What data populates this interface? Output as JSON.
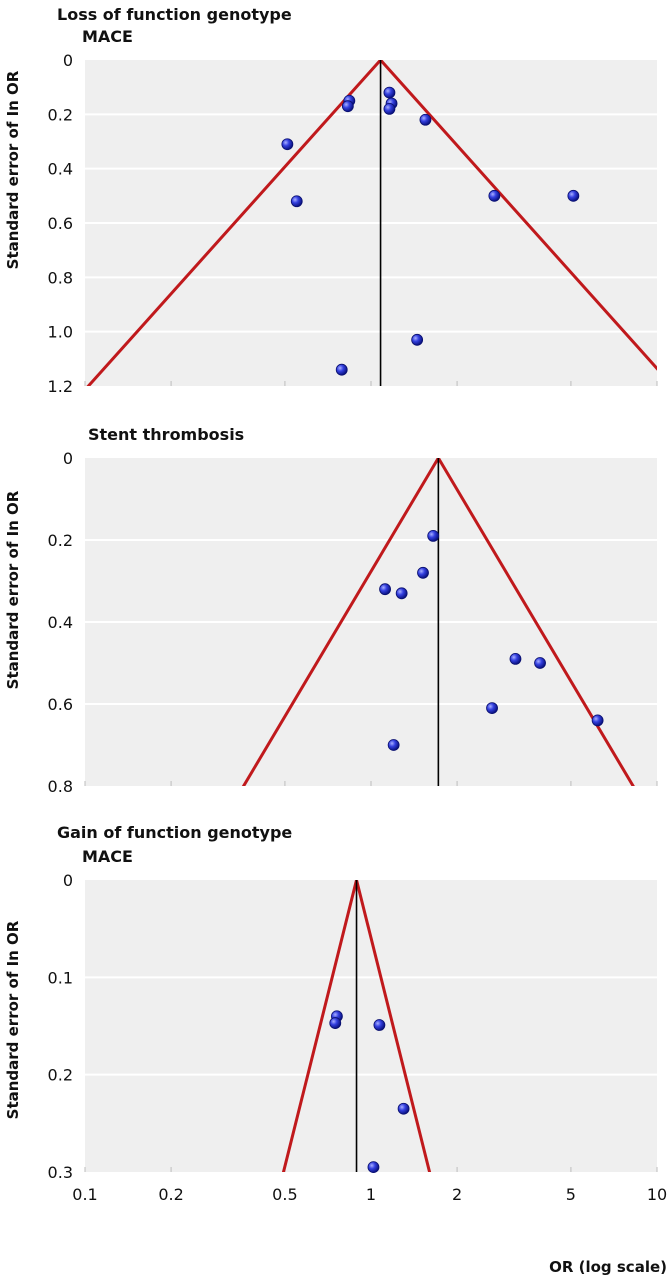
{
  "chart_data": [
    {
      "type": "scatter",
      "title": "Loss of function genotype",
      "subtitle": "MACE",
      "ylabel": "Standard error of In OR",
      "xscale": "log",
      "xlim": [
        0.1,
        10
      ],
      "ylim": [
        0,
        1.2
      ],
      "y_inverted": true,
      "yticks": [
        0,
        0.2,
        0.4,
        0.6,
        0.8,
        1.0,
        1.2
      ],
      "ytick_labels": [
        "0",
        "0.2",
        "0.4",
        "0.6",
        "0.8",
        "1.0",
        "1.2"
      ],
      "pooled_or": 1.08,
      "points": [
        {
          "x": 1.16,
          "y": 0.12
        },
        {
          "x": 0.84,
          "y": 0.15
        },
        {
          "x": 0.83,
          "y": 0.17
        },
        {
          "x": 1.18,
          "y": 0.16
        },
        {
          "x": 1.16,
          "y": 0.18
        },
        {
          "x": 1.55,
          "y": 0.22
        },
        {
          "x": 0.51,
          "y": 0.31
        },
        {
          "x": 0.55,
          "y": 0.52
        },
        {
          "x": 2.7,
          "y": 0.5
        },
        {
          "x": 5.1,
          "y": 0.5
        },
        {
          "x": 1.45,
          "y": 1.03
        },
        {
          "x": 0.79,
          "y": 1.14
        }
      ]
    },
    {
      "type": "scatter",
      "title": "",
      "subtitle": "Stent thrombosis",
      "ylabel": "Standard error of In OR",
      "xscale": "log",
      "xlim": [
        0.1,
        10
      ],
      "ylim": [
        0,
        0.8
      ],
      "y_inverted": true,
      "yticks": [
        0,
        0.2,
        0.4,
        0.6,
        0.8
      ],
      "ytick_labels": [
        "0",
        "0.2",
        "0.4",
        "0.6",
        "0.8"
      ],
      "pooled_or": 1.72,
      "points": [
        {
          "x": 1.65,
          "y": 0.19
        },
        {
          "x": 1.52,
          "y": 0.28
        },
        {
          "x": 1.12,
          "y": 0.32
        },
        {
          "x": 1.28,
          "y": 0.33
        },
        {
          "x": 3.2,
          "y": 0.49
        },
        {
          "x": 3.9,
          "y": 0.5
        },
        {
          "x": 2.65,
          "y": 0.61
        },
        {
          "x": 6.2,
          "y": 0.64
        },
        {
          "x": 1.2,
          "y": 0.7
        }
      ]
    },
    {
      "type": "scatter",
      "title": "Gain of function genotype",
      "subtitle": "MACE",
      "ylabel": "Standard error of In OR",
      "xlabel": "OR (log scale)",
      "xscale": "log",
      "xlim": [
        0.1,
        10
      ],
      "ylim": [
        0,
        0.3
      ],
      "y_inverted": true,
      "yticks": [
        0,
        0.1,
        0.2,
        0.3
      ],
      "ytick_labels": [
        "0",
        "0.1",
        "0.2",
        "0.3"
      ],
      "xticks": [
        0.1,
        0.2,
        0.5,
        1,
        2,
        5,
        10
      ],
      "xtick_labels": [
        "0.1",
        "0.2",
        "0.5",
        "1",
        "2",
        "5",
        "10"
      ],
      "pooled_or": 0.89,
      "points": [
        {
          "x": 0.76,
          "y": 0.14
        },
        {
          "x": 0.75,
          "y": 0.147
        },
        {
          "x": 1.07,
          "y": 0.149
        },
        {
          "x": 1.3,
          "y": 0.235
        },
        {
          "x": 1.02,
          "y": 0.295
        }
      ]
    }
  ],
  "colors": {
    "panel_bg": "#efefef",
    "grid": "#ffffff",
    "funnel": "#c0191c",
    "point": "#2432d6",
    "pooled_line": "#000000"
  }
}
